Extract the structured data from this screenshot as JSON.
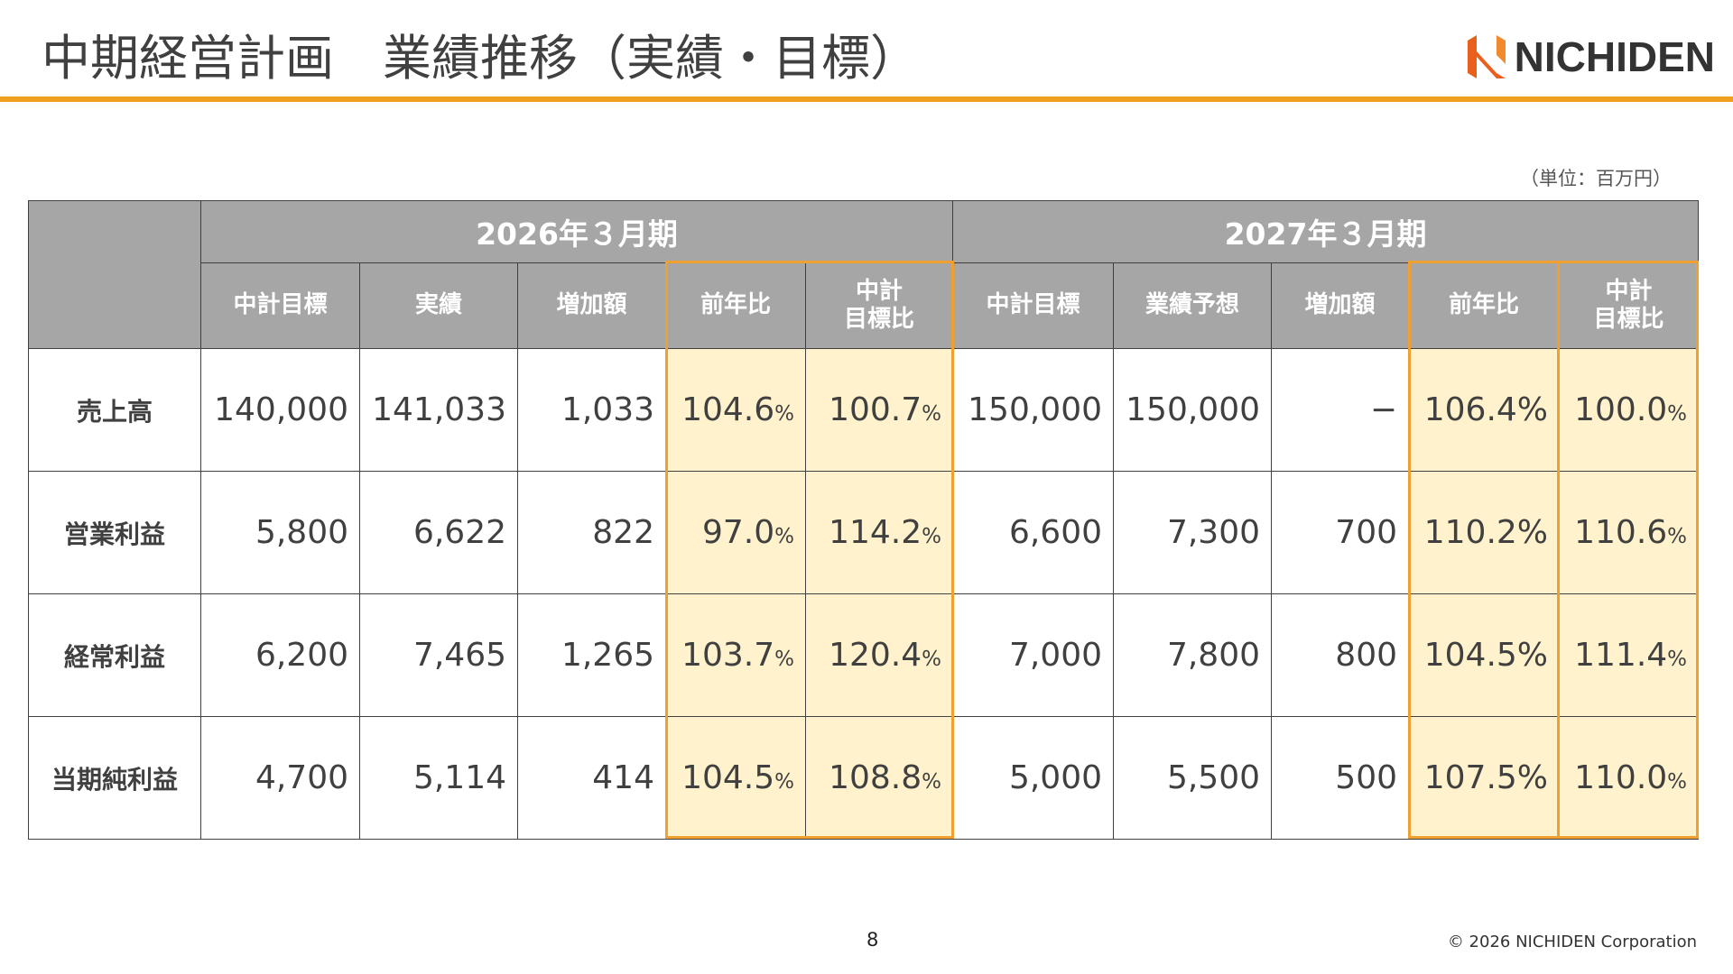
{
  "header": {
    "title": "中期経営計画　業績推移（実績・目標）",
    "logo": "NICHIDEN"
  },
  "unit_note": "（単位：百万円）",
  "table": {
    "groups": [
      "2026年３月期",
      "2027年３月期"
    ],
    "columns": [
      "中計目標",
      "実績",
      "増加額",
      "前年比",
      "中計目標比",
      "中計目標",
      "業績予想",
      "増加額",
      "前年比",
      "中計目標比"
    ],
    "rows": [
      {
        "label": "売上高",
        "cells": [
          "140,000",
          "141,033",
          "1,033",
          {
            "value": "104.6",
            "unit": "%"
          },
          {
            "value": "100.7",
            "unit": "%"
          },
          "150,000",
          "150,000",
          "−",
          "106.4%",
          {
            "value": "100.0",
            "unit": "%"
          }
        ]
      },
      {
        "label": "営業利益",
        "cells": [
          "5,800",
          "6,622",
          "822",
          {
            "value": "97.0",
            "unit": "%"
          },
          {
            "value": "114.2",
            "unit": "%"
          },
          "6,600",
          "7,300",
          "700",
          "110.2%",
          {
            "value": "110.6",
            "unit": "%"
          }
        ]
      },
      {
        "label": "経常利益",
        "cells": [
          "6,200",
          "7,465",
          "1,265",
          {
            "value": "103.7",
            "unit": "%"
          },
          {
            "value": "120.4",
            "unit": "%"
          },
          "7,000",
          "7,800",
          "800",
          "104.5%",
          {
            "value": "111.4",
            "unit": "%"
          }
        ]
      },
      {
        "label": "当期純利益",
        "cells": [
          "4,700",
          "5,114",
          "414",
          {
            "value": "104.5",
            "unit": "%"
          },
          {
            "value": "108.8",
            "unit": "%"
          },
          "5,000",
          "5,500",
          "500",
          "107.5%",
          {
            "value": "110.0",
            "unit": "%"
          }
        ]
      }
    ]
  },
  "footer": {
    "page": "8",
    "copyright": "© 2026 NICHIDEN Corporation"
  }
}
